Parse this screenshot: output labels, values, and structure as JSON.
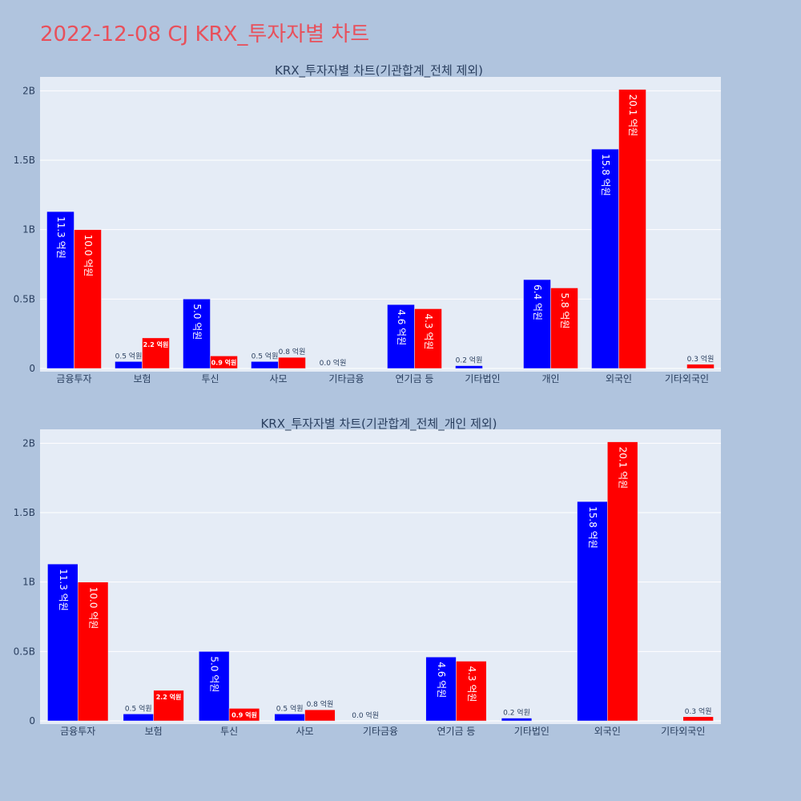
{
  "title": "2022-12-08 CJ KRX_투자자별 차트",
  "colors": {
    "buy": "#0000ff",
    "sell": "#ff0000",
    "title": "#e8505b"
  },
  "chart_data": [
    {
      "type": "bar",
      "title": "KRX_투자자별 차트(기관합계_전체 제외)",
      "categories": [
        "금융투자",
        "보험",
        "투신",
        "사모",
        "기타금융",
        "연기금 등",
        "기타법인",
        "개인",
        "외국인",
        "기타외국인"
      ],
      "ylim": [
        0,
        2.1
      ],
      "yticks": [
        0,
        0.5,
        1,
        1.5,
        2
      ],
      "ytick_labels": [
        "0",
        "0.5B",
        "1B",
        "1.5B",
        "2B"
      ],
      "series": [
        {
          "name": "series_a",
          "values": [
            1.13,
            0.05,
            0.5,
            0.05,
            0.0,
            0.46,
            0.02,
            0.64,
            1.58,
            null
          ],
          "labels": [
            "11.3 억원",
            "0.5 억원",
            "5.0 억원",
            "0.5 억원",
            "0.0 억원",
            "4.6 억원",
            "0.2 억원",
            "6.4 억원",
            "15.8 억원",
            null
          ]
        },
        {
          "name": "series_b",
          "values": [
            1.0,
            0.22,
            0.09,
            0.08,
            null,
            0.43,
            null,
            0.58,
            2.01,
            0.03
          ],
          "labels": [
            "10.0 억원",
            "2.2 억원",
            "0.9 억원",
            "0.8 억원",
            null,
            "4.3 억원",
            null,
            "5.8 억원",
            "20.1 억원",
            "0.3 억원"
          ]
        }
      ]
    },
    {
      "type": "bar",
      "title": "KRX_투자자별 차트(기관합계_전체_개인 제외)",
      "categories": [
        "금융투자",
        "보험",
        "투신",
        "사모",
        "기타금융",
        "연기금 등",
        "기타법인",
        "외국인",
        "기타외국인"
      ],
      "ylim": [
        0,
        2.1
      ],
      "yticks": [
        0,
        0.5,
        1,
        1.5,
        2
      ],
      "ytick_labels": [
        "0",
        "0.5B",
        "1B",
        "1.5B",
        "2B"
      ],
      "series": [
        {
          "name": "series_a",
          "values": [
            1.13,
            0.05,
            0.5,
            0.05,
            0.0,
            0.46,
            0.02,
            1.58,
            null
          ],
          "labels": [
            "11.3 억원",
            "0.5 억원",
            "5.0 억원",
            "0.5 억원",
            "0.0 억원",
            "4.6 억원",
            "0.2 억원",
            "15.8 억원",
            null
          ]
        },
        {
          "name": "series_b",
          "values": [
            1.0,
            0.22,
            0.09,
            0.08,
            null,
            0.43,
            null,
            2.01,
            0.03
          ],
          "labels": [
            "10.0 억원",
            "2.2 억원",
            "0.9 억원",
            "0.8 억원",
            null,
            "4.3 억원",
            null,
            "20.1 억원",
            "0.3 억원"
          ]
        }
      ]
    }
  ]
}
